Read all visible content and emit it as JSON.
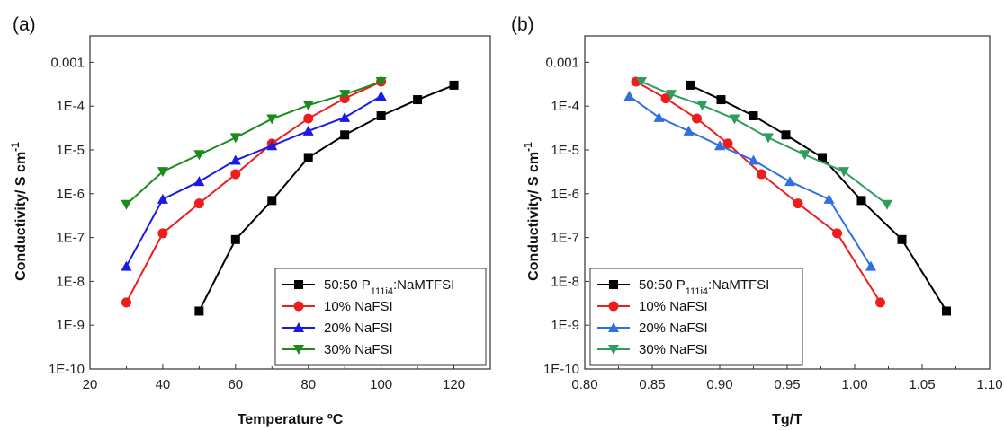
{
  "chart_data": [
    {
      "type": "line",
      "panel_label": "(a)",
      "xlabel": "Temperature ºC",
      "ylabel": "Conductivity/ S cm",
      "ylabel_sup": "-1",
      "xlim": [
        20,
        130
      ],
      "xticks": [
        20,
        40,
        60,
        80,
        100,
        120
      ],
      "ylim": [
        1e-10,
        0.004
      ],
      "yscale": "log",
      "yticks": [
        1e-10,
        1e-09,
        1e-08,
        1e-07,
        1e-06,
        1e-05,
        0.0001,
        0.001
      ],
      "ytick_labels": [
        "1E-10",
        "1E-9",
        "1E-8",
        "1E-7",
        "1E-6",
        "1E-5",
        "1E-4",
        "0.001"
      ],
      "legend_placement": "bottom-right",
      "series": [
        {
          "name_main": "50:50 P",
          "name_sub": "111i4",
          "name_tail": ":NaMTFSI",
          "color": "#000000",
          "marker": "square",
          "x": [
            50,
            60,
            70,
            80,
            90,
            100,
            110,
            120
          ],
          "y": [
            2.1e-09,
            9e-08,
            7e-07,
            6.7e-06,
            2.2e-05,
            6e-05,
            0.00014,
            0.0003
          ]
        },
        {
          "name": "10% NaFSI",
          "color": "#ee1c1c",
          "marker": "circle",
          "x": [
            30,
            40,
            50,
            60,
            70,
            80,
            90,
            100
          ],
          "y": [
            3.3e-09,
            1.25e-07,
            6e-07,
            2.8e-06,
            1.4e-05,
            5.2e-05,
            0.00015,
            0.00036
          ]
        },
        {
          "name": "20% NaFSI",
          "color": "#1a1ae6",
          "marker": "triangle-up",
          "x": [
            30,
            40,
            50,
            60,
            70,
            80,
            90,
            100
          ],
          "y": [
            2.2e-08,
            7.5e-07,
            1.9e-06,
            5.8e-06,
            1.25e-05,
            2.7e-05,
            5.5e-05,
            0.00017
          ]
        },
        {
          "name": "30% NaFSI",
          "color": "#1a8a1a",
          "marker": "triangle-down",
          "x": [
            30,
            40,
            50,
            60,
            70,
            80,
            90,
            100
          ],
          "y": [
            5.7e-07,
            3.2e-06,
            7.8e-06,
            1.9e-05,
            5.1e-05,
            0.000105,
            0.000185,
            0.00036
          ]
        }
      ]
    },
    {
      "type": "line",
      "panel_label": "(b)",
      "xlabel": "Tg/T",
      "ylabel": "Conductivity/ S cm",
      "ylabel_sup": "-1",
      "xlim": [
        0.8,
        1.1
      ],
      "xticks": [
        0.8,
        0.85,
        0.9,
        0.95,
        1.0,
        1.05,
        1.1
      ],
      "xtick_labels": [
        "0.80",
        "0.85",
        "0.90",
        "0.95",
        "1.00",
        "1.05",
        "1.10"
      ],
      "ylim": [
        1e-10,
        0.004
      ],
      "yscale": "log",
      "yticks": [
        1e-10,
        1e-09,
        1e-08,
        1e-07,
        1e-06,
        1e-05,
        0.0001,
        0.001
      ],
      "ytick_labels": [
        "1E-10",
        "1E-9",
        "1E-8",
        "1E-7",
        "1E-6",
        "1E-5",
        "1E-4",
        "0.001"
      ],
      "legend_placement": "bottom-left",
      "series": [
        {
          "name_main": "50:50 P",
          "name_sub": "111i4",
          "name_tail": ":NaMTFSI",
          "color": "#000000",
          "marker": "square",
          "x": [
            0.878,
            0.901,
            0.925,
            0.949,
            0.976,
            1.005,
            1.035,
            1.068
          ],
          "y": [
            0.0003,
            0.00014,
            6e-05,
            2.2e-05,
            6.7e-06,
            7e-07,
            9e-08,
            2.1e-09
          ]
        },
        {
          "name": "10% NaFSI",
          "color": "#ee1c1c",
          "marker": "circle",
          "x": [
            0.838,
            0.86,
            0.883,
            0.906,
            0.931,
            0.958,
            0.987,
            1.019
          ],
          "y": [
            0.00036,
            0.00015,
            5.2e-05,
            1.4e-05,
            2.8e-06,
            6e-07,
            1.25e-07,
            3.3e-09
          ]
        },
        {
          "name": "20% NaFSI",
          "color": "#2f6fe0",
          "marker": "triangle-up",
          "x": [
            0.833,
            0.855,
            0.877,
            0.9,
            0.925,
            0.952,
            0.981,
            1.012
          ],
          "y": [
            0.00017,
            5.5e-05,
            2.7e-05,
            1.25e-05,
            5.8e-06,
            1.9e-06,
            7.5e-07,
            2.2e-08
          ]
        },
        {
          "name": "30% NaFSI",
          "color": "#2e9e5e",
          "marker": "triangle-down",
          "x": [
            0.842,
            0.864,
            0.887,
            0.911,
            0.936,
            0.963,
            0.992,
            1.024
          ],
          "y": [
            0.00036,
            0.000185,
            0.000105,
            5.1e-05,
            1.9e-05,
            7.8e-06,
            3.2e-06,
            5.7e-07
          ]
        }
      ]
    }
  ]
}
